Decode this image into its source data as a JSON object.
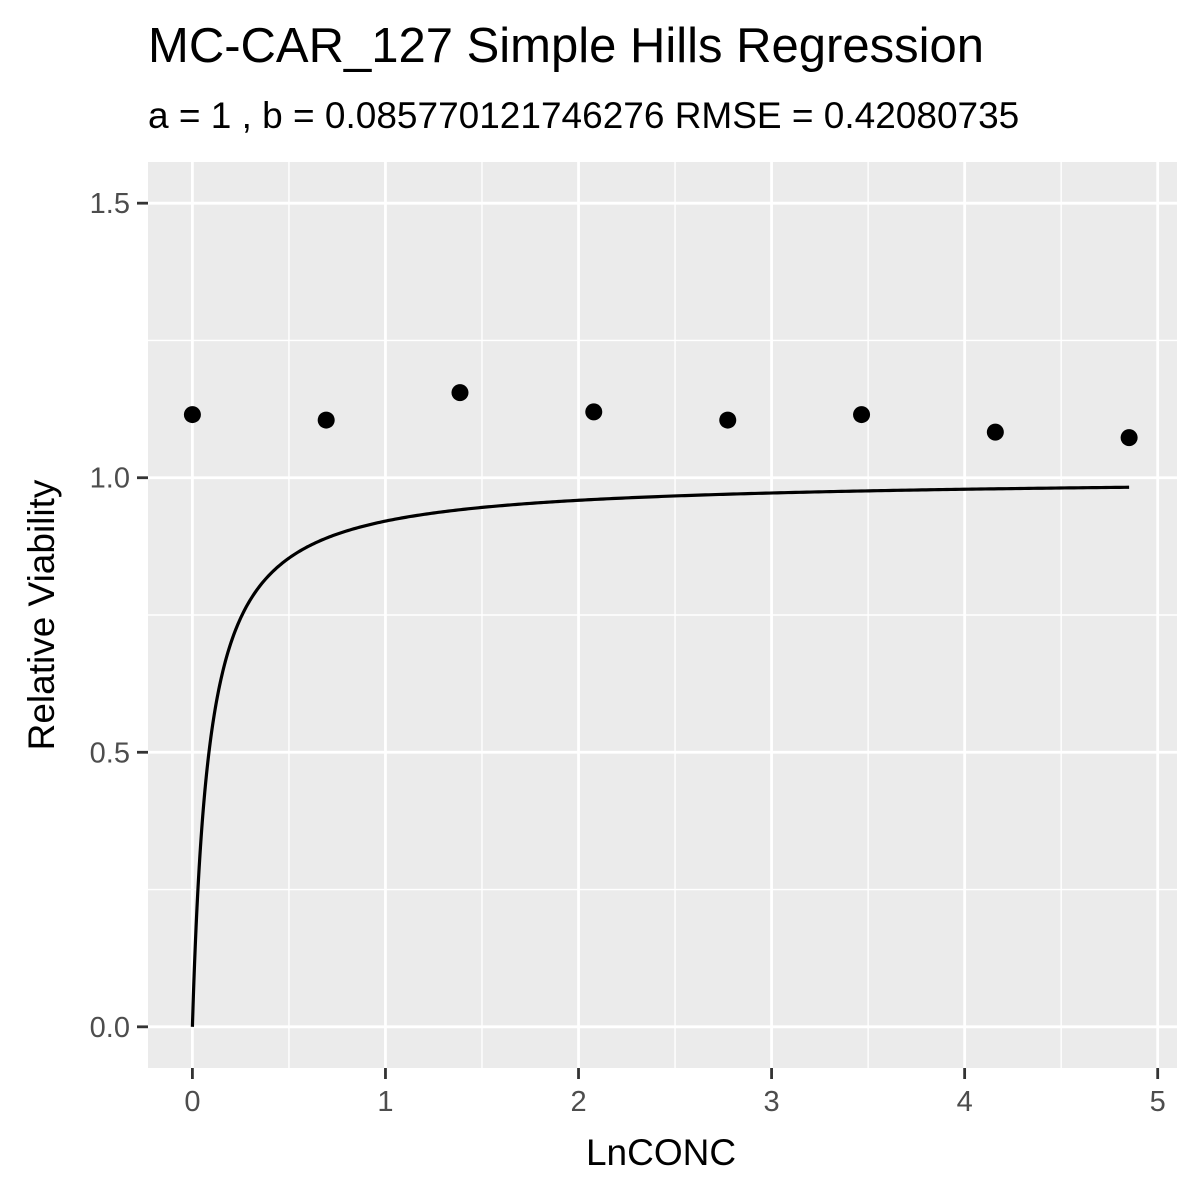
{
  "chart_data": {
    "type": "scatter",
    "title": "MC-CAR_127 Simple Hills Regression",
    "subtitle": "a = 1 , b = 0.085770121746276 RMSE = 0.42080735",
    "xlabel": "LnCONC",
    "ylabel": "Relative Viability",
    "xlim": [
      -0.23,
      5.1
    ],
    "ylim": [
      -0.075,
      1.575
    ],
    "x_ticks": [
      0,
      1,
      2,
      3,
      4,
      5
    ],
    "x_tick_labels": [
      "0",
      "1",
      "2",
      "3",
      "4",
      "5"
    ],
    "y_ticks": [
      0,
      0.5,
      1,
      1.5
    ],
    "y_tick_labels": [
      "0.0",
      "0.5",
      "1.0",
      "1.5"
    ],
    "grid": true,
    "points": {
      "x": [
        0,
        0.693,
        1.386,
        2.079,
        2.773,
        3.466,
        4.159,
        4.852
      ],
      "y": [
        1.115,
        1.105,
        1.155,
        1.12,
        1.105,
        1.115,
        1.083,
        1.073
      ]
    },
    "fit_curve": {
      "model": "simple hill",
      "a": 1,
      "b": 0.085770121746276,
      "x_range": [
        0,
        4.852
      ]
    },
    "colors": {
      "panel": "#ebebeb",
      "grid": "#ffffff",
      "points": "#000000",
      "line": "#000000",
      "tick_label": "#4d4d4d",
      "tick_mark": "#333333"
    }
  }
}
